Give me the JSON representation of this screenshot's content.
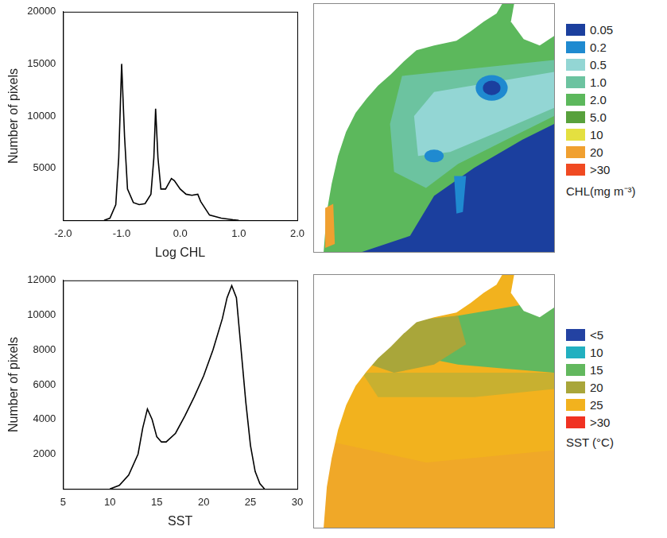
{
  "chart_data": [
    {
      "type": "line",
      "x_label": "Log CHL",
      "y_label": "Number of pixels",
      "x": [
        -1.3,
        -1.2,
        -1.1,
        -1.05,
        -1.0,
        -0.95,
        -0.9,
        -0.8,
        -0.7,
        -0.6,
        -0.5,
        -0.45,
        -0.42,
        -0.38,
        -0.33,
        -0.25,
        -0.15,
        -0.1,
        0.0,
        0.1,
        0.2,
        0.3,
        0.35,
        0.5,
        0.7,
        0.9,
        1.0
      ],
      "values": [
        0,
        200,
        1500,
        6000,
        15000,
        8000,
        3000,
        1700,
        1500,
        1600,
        2500,
        6000,
        10700,
        6000,
        3000,
        3000,
        4000,
        3800,
        3000,
        2500,
        2400,
        2500,
        1800,
        500,
        200,
        50,
        0
      ],
      "color": "#000000",
      "xlim": [
        -2,
        2
      ],
      "xticks": [
        {
          "value": -2,
          "label": "-2.0"
        },
        {
          "value": -1,
          "label": "-1.0"
        },
        {
          "value": 0,
          "label": "0.0"
        },
        {
          "value": 1,
          "label": "1.0"
        },
        {
          "value": 2,
          "label": "2.0"
        }
      ],
      "ylim": [
        0,
        20000
      ],
      "yticks": [
        5000,
        10000,
        15000,
        20000
      ],
      "grid": false
    },
    {
      "type": "line",
      "x_label": "SST",
      "y_label": "Number of pixels",
      "x": [
        10,
        11,
        12,
        13,
        13.5,
        14,
        14.5,
        15,
        15.5,
        16,
        17,
        18,
        19,
        20,
        21,
        22,
        22.5,
        23,
        23.5,
        24,
        24.5,
        25,
        25.5,
        26,
        26.5
      ],
      "values": [
        0,
        200,
        800,
        2000,
        3500,
        4600,
        4000,
        3000,
        2700,
        2700,
        3200,
        4200,
        5300,
        6500,
        8000,
        9800,
        11000,
        11700,
        11000,
        8000,
        5000,
        2500,
        1000,
        300,
        0
      ],
      "color": "#000000",
      "xlim": [
        5,
        30
      ],
      "xticks": [
        5,
        10,
        15,
        20,
        25,
        30
      ],
      "ylim": [
        0,
        12000
      ],
      "yticks": [
        2000,
        4000,
        6000,
        8000,
        10000,
        12000
      ],
      "grid": false
    }
  ],
  "map_legends": [
    {
      "title": "CHL(mg m⁻³)",
      "items": [
        {
          "label": "0.05",
          "color": "#1b3f9e"
        },
        {
          "label": "0.2",
          "color": "#1f8ad0"
        },
        {
          "label": "0.5",
          "color": "#93d6d4"
        },
        {
          "label": "1.0",
          "color": "#6cc3a0"
        },
        {
          "label": "2.0",
          "color": "#5cb85c"
        },
        {
          "label": "5.0",
          "color": "#58a13c"
        },
        {
          "label": "10",
          "color": "#e4e040"
        },
        {
          "label": "20",
          "color": "#f0a030"
        },
        {
          "label": ">30",
          "color": "#f04a22"
        }
      ]
    },
    {
      "title": "SST (°C)",
      "items": [
        {
          "label": "<5",
          "color": "#2342a2"
        },
        {
          "label": "10",
          "color": "#22b0c0"
        },
        {
          "label": "15",
          "color": "#62b85e"
        },
        {
          "label": "20",
          "color": "#a9a63a"
        },
        {
          "label": "25",
          "color": "#f2b21e"
        },
        {
          "label": ">30",
          "color": "#f03222"
        }
      ]
    }
  ]
}
